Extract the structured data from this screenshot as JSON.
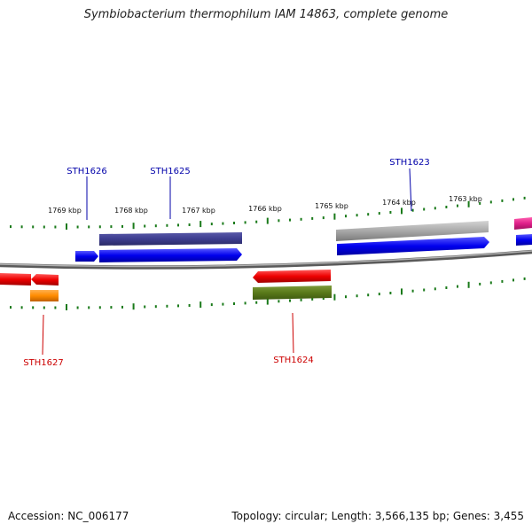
{
  "title": "Symbiobacterium thermophilum IAM 14863, complete genome",
  "footer": {
    "accession": "Accession: NC_006177",
    "summary": "Topology: circular; Length: 3,566,135 bp; Genes: 3,455"
  },
  "scale_labels": [
    "1769 kbp",
    "1768 kbp",
    "1767 kbp",
    "1766 kbp",
    "1765 kbp",
    "1764 kbp",
    "1763 kbp"
  ],
  "genes": [
    {
      "id": "STH1626",
      "label": "STH1626",
      "strand": "forward"
    },
    {
      "id": "STH1625",
      "label": "STH1625",
      "strand": "forward"
    },
    {
      "id": "STH1623",
      "label": "STH1623",
      "strand": "forward"
    },
    {
      "id": "STH1627",
      "label": "STH1627",
      "strand": "reverse"
    },
    {
      "id": "STH1624",
      "label": "STH1624",
      "strand": "reverse"
    }
  ],
  "colors": {
    "forward_label": "#0000aa",
    "reverse_label": "#cc0000",
    "tick": "#1a7a1a",
    "backbone": "#808080",
    "blue": "#0000ee",
    "navy": "#3d3d8f",
    "gray": "#a8a8a8",
    "red": "#ee0000",
    "olive": "#5a7a1a",
    "orange": "#ff8c00",
    "magenta": "#e0208a"
  }
}
